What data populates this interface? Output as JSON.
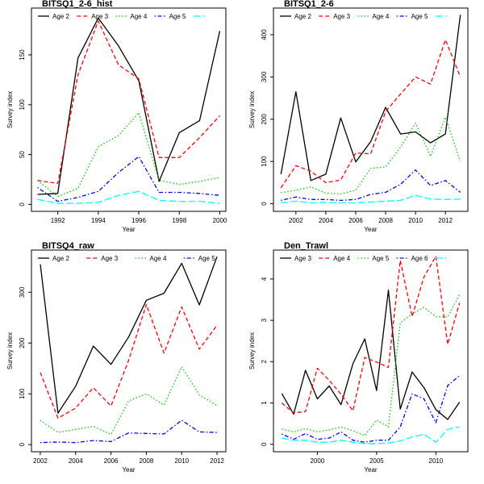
{
  "chart_data": [
    {
      "type": "line",
      "title": "BITSQ1_2-6_hist",
      "xlabel": "Year",
      "ylabel": "Survey index",
      "xlim": [
        1990.7,
        2000.3
      ],
      "ylim": [
        -7,
        197
      ],
      "xticks": [
        1992,
        1994,
        1996,
        1998,
        2000
      ],
      "yticks": [
        0,
        50,
        100,
        150
      ],
      "legend_position": "top",
      "x": [
        1991,
        1992,
        1993,
        1994,
        1995,
        1996,
        1997,
        1998,
        1999,
        2000
      ],
      "series": [
        {
          "name": "Age 2",
          "color": "#000000",
          "dash": "solid",
          "values": [
            10,
            11,
            147,
            187,
            159,
            124,
            23,
            72,
            84,
            174
          ]
        },
        {
          "name": "Age 3",
          "color": "#ff0000",
          "dash": "dashed",
          "values": [
            24,
            21,
            130,
            184,
            140,
            126,
            47,
            47,
            67,
            89
          ]
        },
        {
          "name": "Age 4",
          "color": "#00cc00",
          "dash": "dotted",
          "values": [
            24,
            8,
            16,
            58,
            69,
            92,
            24,
            20,
            23,
            27
          ]
        },
        {
          "name": "Age 5",
          "color": "#0000ff",
          "dash": "dotdash",
          "values": [
            17,
            3,
            7,
            13,
            32,
            48,
            12,
            12,
            11,
            9
          ]
        },
        {
          "name": "",
          "color": "#00ffff",
          "dash": "longdash",
          "values": [
            5,
            1,
            1,
            2,
            9,
            13,
            4,
            3,
            3,
            1
          ]
        }
      ]
    },
    {
      "type": "line",
      "title": "BITSQ1_2-6",
      "xlabel": "Year",
      "ylabel": "Survey index",
      "xlim": [
        2000.5,
        2013.5
      ],
      "ylim": [
        -18,
        463
      ],
      "xticks": [
        2002,
        2004,
        2006,
        2008,
        2010,
        2012
      ],
      "yticks": [
        0,
        100,
        200,
        300,
        400
      ],
      "legend_position": "top",
      "x": [
        2001,
        2002,
        2003,
        2004,
        2005,
        2006,
        2007,
        2008,
        2009,
        2010,
        2011,
        2012,
        2013
      ],
      "series": [
        {
          "name": "Age 2",
          "color": "#000000",
          "dash": "solid",
          "values": [
            70,
            265,
            55,
            70,
            203,
            99,
            147,
            228,
            165,
            170,
            144,
            165,
            447
          ]
        },
        {
          "name": "Age 3",
          "color": "#ff0000",
          "dash": "dashed",
          "values": [
            38,
            90,
            77,
            50,
            56,
            120,
            118,
            218,
            260,
            300,
            283,
            388,
            300
          ]
        },
        {
          "name": "Age 4",
          "color": "#00cc00",
          "dash": "dotted",
          "values": [
            26,
            32,
            40,
            25,
            23,
            32,
            84,
            87,
            134,
            191,
            112,
            205,
            100
          ]
        },
        {
          "name": "Age 5",
          "color": "#0000ff",
          "dash": "dotdash",
          "values": [
            8,
            16,
            10,
            10,
            8,
            10,
            22,
            27,
            46,
            80,
            43,
            55,
            27
          ]
        },
        {
          "name": "",
          "color": "#00ffff",
          "dash": "longdash",
          "values": [
            2,
            6,
            2,
            3,
            2,
            2,
            4,
            6,
            8,
            20,
            11,
            10,
            11
          ]
        }
      ]
    },
    {
      "type": "line",
      "title": "BITSQ4_raw",
      "xlabel": "Year",
      "ylabel": "Survey index",
      "xlim": [
        2001.5,
        2012.5
      ],
      "ylim": [
        -14,
        383
      ],
      "xticks": [
        2002,
        2004,
        2006,
        2008,
        2010,
        2012
      ],
      "yticks": [
        0,
        100,
        200,
        300
      ],
      "legend_position": "top",
      "x": [
        2002,
        2003,
        2004,
        2005,
        2006,
        2007,
        2008,
        2009,
        2010,
        2011,
        2012
      ],
      "series": [
        {
          "name": "Age 2",
          "color": "#000000",
          "dash": "solid",
          "values": [
            355,
            62,
            115,
            194,
            158,
            212,
            284,
            298,
            357,
            275,
            370
          ]
        },
        {
          "name": "Age 3",
          "color": "#ff0000",
          "dash": "dashed",
          "values": [
            142,
            52,
            72,
            112,
            76,
            166,
            276,
            180,
            271,
            188,
            235
          ]
        },
        {
          "name": "Age 4",
          "color": "#00cc00",
          "dash": "dotted",
          "values": [
            48,
            24,
            30,
            36,
            20,
            86,
            100,
            78,
            153,
            98,
            77
          ]
        },
        {
          "name": "Age 5",
          "color": "#0000ff",
          "dash": "dotdash",
          "values": [
            4,
            5,
            4,
            8,
            6,
            23,
            22,
            21,
            48,
            25,
            24
          ]
        }
      ]
    },
    {
      "type": "line",
      "title": "Den_Trawl",
      "xlabel": "Year",
      "ylabel": "Survey index",
      "xlim": [
        1996.3,
        2012.7
      ],
      "ylim": [
        -0.18,
        4.7
      ],
      "xticks": [
        2000,
        2005,
        2010
      ],
      "yticks": [
        0,
        1,
        2,
        3,
        4
      ],
      "legend_position": "top",
      "x": [
        1997,
        1998,
        1999,
        2000,
        2001,
        2002,
        2003,
        2004,
        2005,
        2006,
        2007,
        2008,
        2009,
        2010,
        2011,
        2012
      ],
      "series": [
        {
          "name": "Age 3",
          "color": "#000000",
          "dash": "solid",
          "values": [
            1.23,
            0.73,
            1.79,
            1.1,
            1.41,
            0.96,
            1.95,
            2.55,
            1.3,
            3.73,
            0.85,
            1.75,
            1.37,
            0.84,
            0.6,
            1.02
          ]
        },
        {
          "name": "Age 4",
          "color": "#ff0000",
          "dash": "dashed",
          "values": [
            1.0,
            0.76,
            0.79,
            1.84,
            1.55,
            1.21,
            0.81,
            2.1,
            1.99,
            1.86,
            4.45,
            3.09,
            4.05,
            4.55,
            2.42,
            3.42
          ]
        },
        {
          "name": "Age 5",
          "color": "#00cc00",
          "dash": "dotted",
          "values": [
            0.37,
            0.3,
            0.38,
            0.3,
            0.35,
            0.42,
            0.33,
            0.21,
            0.59,
            0.42,
            2.94,
            3.16,
            3.31,
            3.09,
            3.08,
            3.62
          ]
        },
        {
          "name": "Age 6",
          "color": "#0000ff",
          "dash": "dotdash",
          "values": [
            0.25,
            0.12,
            0.26,
            0.12,
            0.15,
            0.3,
            0.1,
            0.05,
            0.1,
            0.1,
            0.42,
            1.22,
            1.1,
            0.52,
            1.42,
            1.66
          ]
        },
        {
          "name": "",
          "color": "#00ffff",
          "dash": "longdash",
          "values": [
            0.15,
            0.1,
            0.1,
            0.05,
            0.05,
            0.1,
            0.05,
            0.02,
            0.02,
            0.03,
            0.08,
            0.18,
            0.24,
            0.05,
            0.36,
            0.42
          ]
        }
      ]
    }
  ]
}
